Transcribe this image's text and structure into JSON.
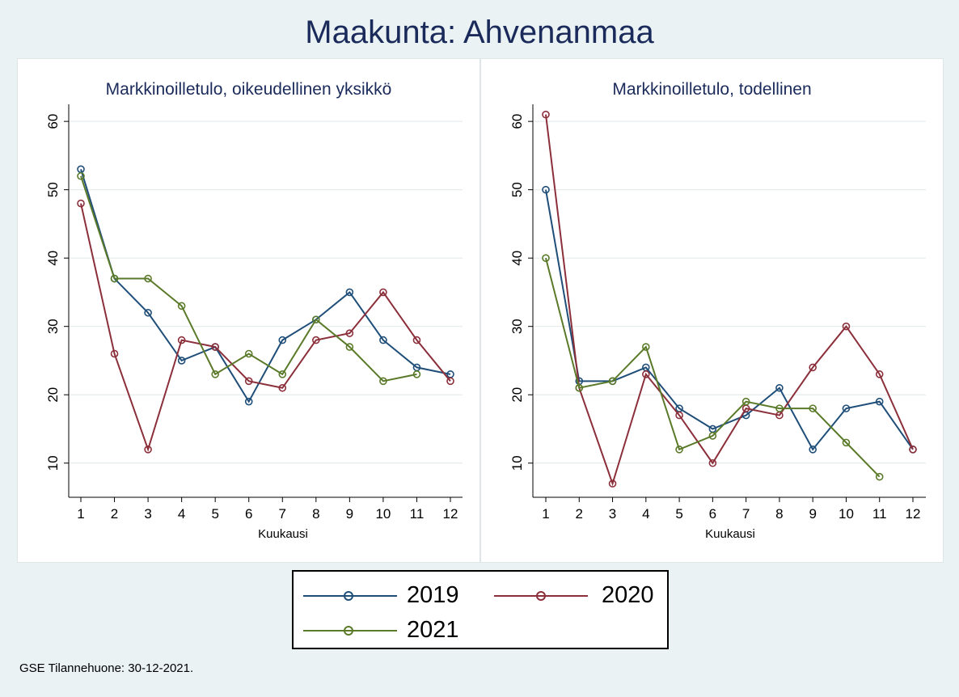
{
  "page_title": "Maakunta: Ahvenanmaa",
  "footer": "GSE Tilannehuone: 30-12-2021.",
  "colors": {
    "2019": "#1f4e79",
    "2020": "#8b2f3a",
    "2021": "#5a7a2a"
  },
  "legend": [
    {
      "name": "2019",
      "color": "#1f4e79"
    },
    {
      "name": "2020",
      "color": "#8b2f3a"
    },
    {
      "name": "2021",
      "color": "#5a7a2a"
    }
  ],
  "chart_data": [
    {
      "type": "line",
      "title": "Markkinoilletulo, oikeudellinen yksikkö",
      "xlabel": "Kuukausi",
      "ylabel": "",
      "x": [
        1,
        2,
        3,
        4,
        5,
        6,
        7,
        8,
        9,
        10,
        11,
        12
      ],
      "yticks": [
        10,
        20,
        30,
        40,
        50,
        60
      ],
      "xlim": [
        1,
        12
      ],
      "ylim": [
        5,
        62.5
      ],
      "grid": true,
      "series": [
        {
          "name": "2019",
          "values": [
            53,
            37,
            32,
            25,
            27,
            19,
            28,
            31,
            35,
            28,
            24,
            23
          ]
        },
        {
          "name": "2020",
          "values": [
            48,
            26,
            12,
            28,
            27,
            22,
            21,
            28,
            29,
            35,
            28,
            22
          ]
        },
        {
          "name": "2021",
          "values": [
            52,
            37,
            37,
            33,
            23,
            26,
            23,
            31,
            27,
            22,
            23,
            null
          ]
        }
      ]
    },
    {
      "type": "line",
      "title": "Markkinoilletulo, todellinen",
      "xlabel": "Kuukausi",
      "ylabel": "",
      "x": [
        1,
        2,
        3,
        4,
        5,
        6,
        7,
        8,
        9,
        10,
        11,
        12
      ],
      "yticks": [
        10,
        20,
        30,
        40,
        50,
        60
      ],
      "xlim": [
        1,
        12
      ],
      "ylim": [
        5,
        62.5
      ],
      "grid": true,
      "series": [
        {
          "name": "2019",
          "values": [
            50,
            22,
            22,
            24,
            18,
            15,
            17,
            21,
            12,
            18,
            19,
            12
          ]
        },
        {
          "name": "2020",
          "values": [
            61,
            21,
            7,
            23,
            17,
            10,
            18,
            17,
            24,
            30,
            23,
            12
          ]
        },
        {
          "name": "2021",
          "values": [
            40,
            21,
            22,
            27,
            12,
            14,
            19,
            18,
            18,
            13,
            8,
            null
          ]
        }
      ]
    }
  ]
}
